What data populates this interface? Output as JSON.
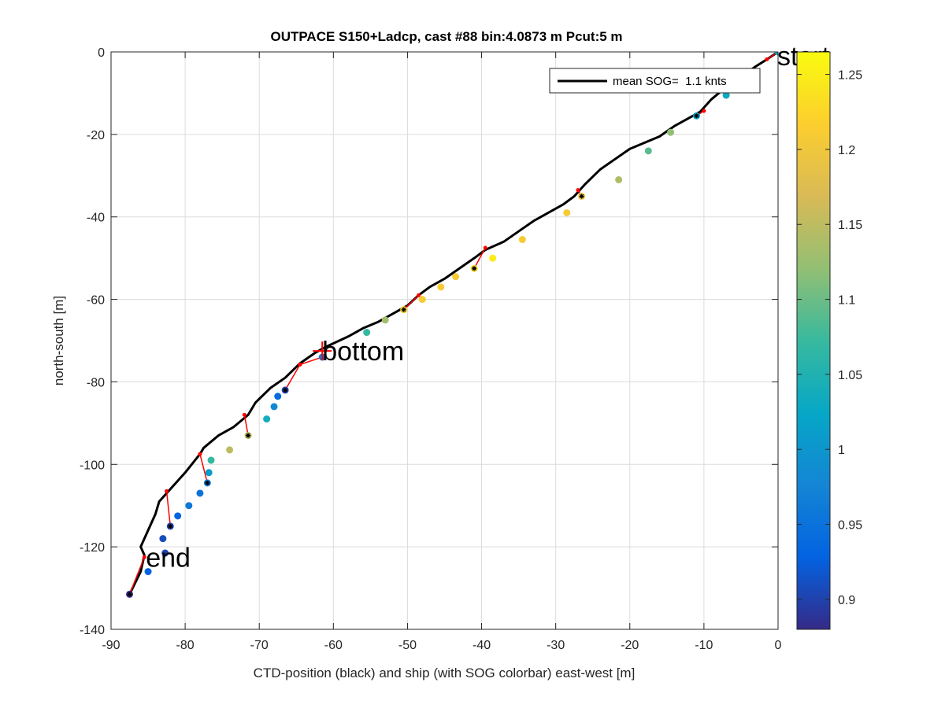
{
  "chart_data": {
    "type": "scatter",
    "title": "OUTPACE S150+Ladcp, cast #88 bin:4.0873 m  Pcut:5 m",
    "xlabel": "CTD-position (black) and ship (with SOG colorbar) east-west [m]",
    "ylabel": "north-south [m]",
    "xlim": [
      -90,
      0
    ],
    "ylim": [
      -140,
      0
    ],
    "xticks": [
      -90,
      -80,
      -70,
      -60,
      -50,
      -40,
      -30,
      -20,
      -10,
      0
    ],
    "yticks": [
      0,
      -20,
      -40,
      -60,
      -80,
      -100,
      -120,
      -140
    ],
    "grid": true,
    "legend": {
      "position": "top-right",
      "entries": [
        "mean SOG=  1.1 knts"
      ]
    },
    "colorbar": {
      "range": [
        0.88,
        1.265
      ],
      "ticks": [
        0.9,
        0.95,
        1,
        1.05,
        1.1,
        1.15,
        1.2,
        1.25
      ],
      "tick_labels": [
        "0.9",
        "0.95",
        "1",
        "1.05",
        "1.1",
        "1.15",
        "1.2",
        "1.25"
      ],
      "colormap": "parula"
    },
    "ctd_track": {
      "color": "#000000",
      "x": [
        0,
        -1.5,
        -3,
        -5,
        -7,
        -9,
        -10.5,
        -12,
        -14,
        -16,
        -18,
        -20,
        -22,
        -24,
        -26,
        -27.5,
        -29,
        -31,
        -33,
        -35,
        -37,
        -39.5,
        -41,
        -43,
        -45,
        -47,
        -48.5,
        -50,
        -52,
        -54,
        -56,
        -58,
        -61,
        -62.5,
        -64.5,
        -66.5,
        -68.5,
        -70.5,
        -71.5,
        -73.5,
        -75.5,
        -77.5,
        -78,
        -80,
        -82.5,
        -83.5,
        -84,
        -86,
        -85.5,
        -86,
        -87.5
      ],
      "y": [
        0,
        -1.8,
        -3.5,
        -6,
        -8.5,
        -11.5,
        -14.5,
        -16,
        -18,
        -20.5,
        -22,
        -23.5,
        -26,
        -28.5,
        -32,
        -35,
        -37,
        -39,
        -41,
        -43.5,
        -46,
        -48,
        -50,
        -52.5,
        -55,
        -57,
        -59,
        -61.5,
        -63.5,
        -65.5,
        -67,
        -69,
        -71.5,
        -73,
        -75.5,
        -79,
        -81.5,
        -85,
        -88,
        -91,
        -93,
        -96,
        -97.5,
        -102,
        -107,
        -109,
        -112,
        -120,
        -122,
        -126,
        -131.5
      ]
    },
    "ship_positions": {
      "x": [
        0,
        -7,
        -11,
        -14.5,
        -17.5,
        -21.5,
        -26.5,
        -28.5,
        -34.5,
        -38.5,
        -41,
        -43.5,
        -45.5,
        -48,
        -50.5,
        -53,
        -55.5,
        -61.5,
        -66.5,
        -67.5,
        -68,
        -69,
        -71.5,
        -74,
        -76.5,
        -76.8,
        -77,
        -78,
        -79.5,
        -81,
        -82,
        -83,
        -82.7,
        -85,
        -87.5
      ],
      "y": [
        0,
        -10.5,
        -15.5,
        -19.5,
        -24,
        -31,
        -35,
        -39,
        -45.5,
        -50,
        -52.5,
        -54.5,
        -57,
        -60,
        -62.5,
        -65,
        -68,
        -74,
        -82,
        -83.5,
        -86,
        -89,
        -93,
        -96.5,
        -99,
        -102,
        -104.5,
        -107,
        -110,
        -112.5,
        -115,
        -118,
        -121.5,
        -126,
        -131.5
      ],
      "sog": [
        1.02,
        1.03,
        1.02,
        1.12,
        1.09,
        1.14,
        1.2,
        1.21,
        1.21,
        1.25,
        1.23,
        1.21,
        1.21,
        1.21,
        1.22,
        1.13,
        1.07,
        0.96,
        0.9,
        0.94,
        0.98,
        1.04,
        1.15,
        1.15,
        1.07,
        1.01,
        0.96,
        0.95,
        0.96,
        0.93,
        0.9,
        0.91,
        0.9,
        0.93,
        0.88
      ],
      "marked": [
        false,
        false,
        true,
        false,
        false,
        false,
        true,
        false,
        false,
        false,
        true,
        false,
        false,
        false,
        true,
        false,
        false,
        false,
        true,
        false,
        false,
        false,
        true,
        false,
        false,
        false,
        true,
        false,
        false,
        false,
        true,
        false,
        false,
        false,
        true
      ]
    },
    "connectors": {
      "color": "#ff0000",
      "segments": [
        [
          -1.5,
          -1.8,
          0,
          0
        ],
        [
          -10,
          -14.3,
          -11,
          -15.5
        ],
        [
          -27,
          -33.5,
          -26.5,
          -35
        ],
        [
          -39.5,
          -47.5,
          -41,
          -52.5
        ],
        [
          -48.5,
          -59,
          -50.5,
          -62.5
        ],
        [
          -64.5,
          -75.8,
          -61.5,
          -74
        ],
        [
          -64.5,
          -75.8,
          -66.5,
          -82
        ],
        [
          -72,
          -88,
          -71.5,
          -93
        ],
        [
          -78,
          -97.5,
          -77,
          -104.5
        ],
        [
          -82.5,
          -106.5,
          -82,
          -115
        ],
        [
          -85.5,
          -122.5,
          -87.5,
          -131.5
        ]
      ]
    },
    "annotations": [
      {
        "text": "start",
        "x": -0.1,
        "y": -1
      },
      {
        "text": "bottom",
        "x": -61.5,
        "y": -72.5
      },
      {
        "text": "end",
        "x": -85.3,
        "y": -122.5
      }
    ],
    "bottom_marker": {
      "x": -61.5,
      "y": -72.5,
      "color": "#ff0000"
    }
  }
}
